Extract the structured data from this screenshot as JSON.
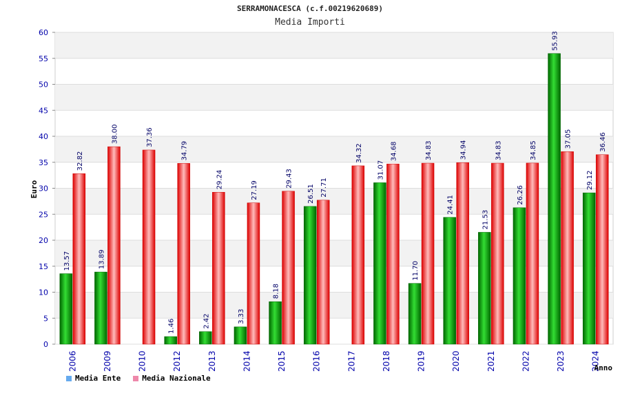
{
  "header": {
    "title": "SERRAMONACESCA (c.f.00219620689)",
    "subtitle": "Media Importi"
  },
  "legend": {
    "items": [
      {
        "label": "Media Ente",
        "color": "#66aaee"
      },
      {
        "label": "Media Nazionale",
        "color": "#ee88aa"
      }
    ]
  },
  "chart_data": {
    "type": "bar",
    "title": "Media Importi",
    "xlabel": "Anno",
    "ylabel": "Euro",
    "ylim": [
      0,
      60
    ],
    "yticks": [
      0,
      5,
      10,
      15,
      20,
      25,
      30,
      35,
      40,
      45,
      50,
      55,
      60
    ],
    "categories": [
      "2006",
      "2009",
      "2010",
      "2012",
      "2013",
      "2014",
      "2015",
      "2016",
      "2017",
      "2018",
      "2019",
      "2020",
      "2021",
      "2022",
      "2023",
      "2024"
    ],
    "series": [
      {
        "name": "Media Ente",
        "color": "#00aa00",
        "values": [
          13.57,
          13.89,
          null,
          1.46,
          2.42,
          3.33,
          8.18,
          26.51,
          null,
          31.07,
          11.7,
          24.41,
          21.53,
          26.26,
          55.93,
          29.12
        ],
        "labels": [
          "13.57",
          "13.89",
          "",
          "1.46",
          "2.42",
          "3.33",
          "8.18",
          "26.51",
          "",
          "31.07",
          "11.70",
          "24.41",
          "21.53",
          "26.26",
          "55.93",
          "29.12"
        ]
      },
      {
        "name": "Media Nazionale",
        "color": "#ee0022",
        "values": [
          32.82,
          38.0,
          37.36,
          34.79,
          29.24,
          27.19,
          29.43,
          27.71,
          34.32,
          34.68,
          34.83,
          34.94,
          34.83,
          34.85,
          37.05,
          36.46
        ],
        "labels": [
          "32.82",
          "38.00",
          "37.36",
          "34.79",
          "29.24",
          "27.19",
          "29.43",
          "27.71",
          "34.32",
          "34.68",
          "34.83",
          "34.94",
          "34.83",
          "34.85",
          "37.05",
          "36.46"
        ]
      }
    ],
    "grid": true,
    "legend_position": "bottom-left"
  }
}
